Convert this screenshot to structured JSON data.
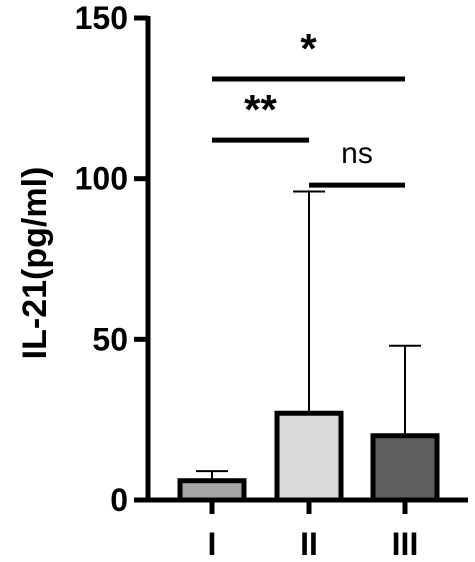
{
  "chart_data": {
    "type": "bar",
    "ylabel": "IL-21(pg/ml)",
    "xlabel": "",
    "ylim": [
      0,
      150
    ],
    "yticks": [
      "0",
      "50",
      "100",
      "150"
    ],
    "categories": [
      "I",
      "II",
      "III"
    ],
    "values": [
      6,
      27,
      20
    ],
    "errors_upper": [
      9,
      96,
      48
    ],
    "colors": [
      "#a6a6a6",
      "#d9d9d9",
      "#5f5f5f"
    ],
    "significance": [
      {
        "from": "I",
        "to": "III",
        "label": "*",
        "y": 131
      },
      {
        "from": "I",
        "to": "II",
        "label": "**",
        "y": 112
      },
      {
        "from": "II",
        "to": "III",
        "label": "ns",
        "y": 98
      }
    ]
  }
}
